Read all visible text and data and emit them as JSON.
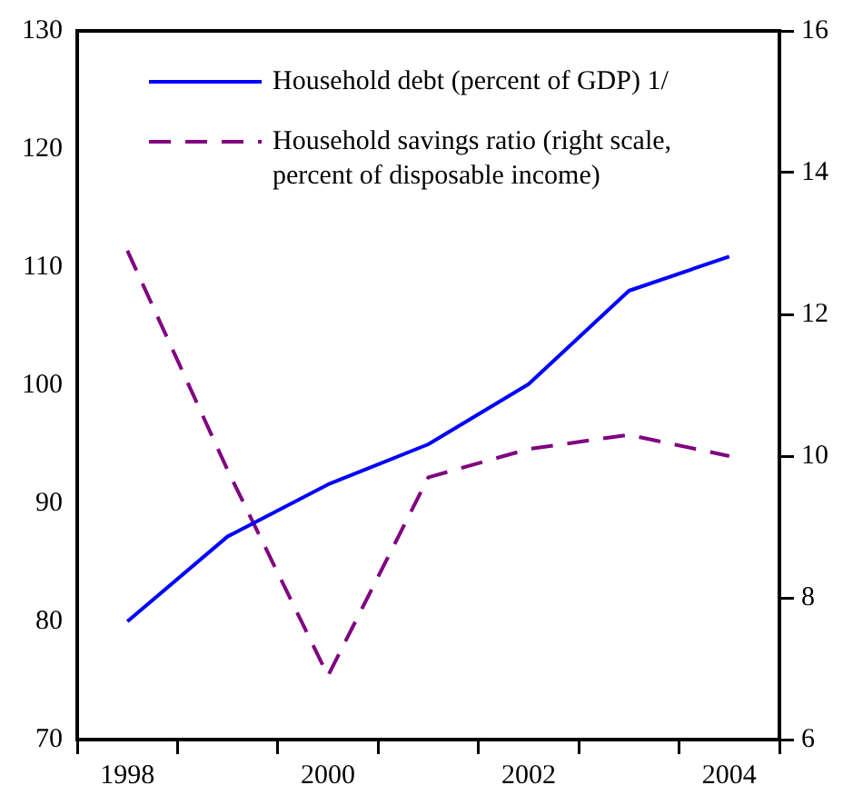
{
  "chart_data": {
    "type": "line",
    "categories": [
      "1998",
      null,
      "2000",
      null,
      "2002",
      null,
      "2004"
    ],
    "series": [
      {
        "name": "Household debt (percent of GDP) 1/",
        "color": "#0000ff",
        "values": [
          80,
          87.2,
          91.6,
          95,
          100.1,
          108,
          110.9
        ],
        "line_style": "solid"
      },
      {
        "name": "Household savings ratio (right scale, percent of disposable income)",
        "color": "#800080",
        "values": [
          12.9,
          9.8,
          6.9,
          9.7,
          10.1,
          10.3,
          10.0
        ],
        "axis": "y2",
        "line_style": "dashed"
      }
    ],
    "ylim": [
      70,
      130
    ],
    "yticks": [
      70,
      80,
      90,
      100,
      110,
      120,
      130
    ],
    "y2lim": [
      6,
      16
    ],
    "y2ticks": [
      6,
      8,
      10,
      12,
      14,
      16
    ],
    "grid": false,
    "legend": "top",
    "marker": "none"
  }
}
